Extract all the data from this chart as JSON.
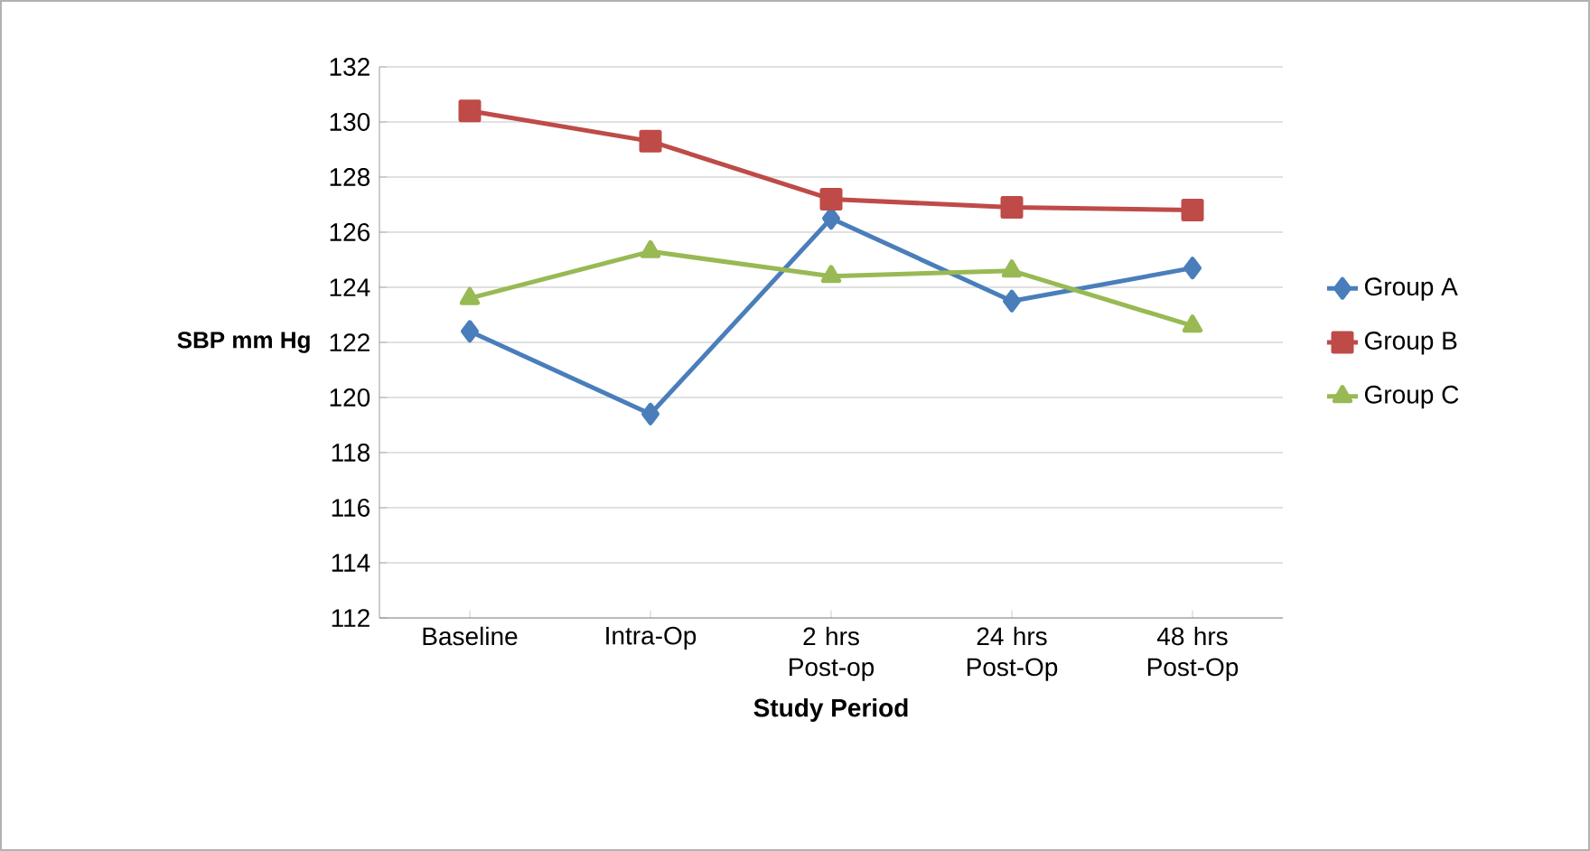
{
  "chart_data": {
    "type": "line",
    "xlabel": "Study Period",
    "ylabel": "SBP mm Hg",
    "categories": [
      "Baseline",
      "Intra-Op",
      "2 hrs Post-op",
      "24 hrs Post-Op",
      "48 hrs Post-Op"
    ],
    "ylim": [
      112,
      132
    ],
    "yticks": [
      112,
      114,
      116,
      118,
      120,
      122,
      124,
      126,
      128,
      130,
      132
    ],
    "grid": "y",
    "legend": "right",
    "series": [
      {
        "name": "Group A",
        "color": "#4a7ebb",
        "marker": "diamond",
        "values": [
          122.4,
          119.4,
          126.5,
          123.5,
          124.7
        ]
      },
      {
        "name": "Group B",
        "color": "#be4b48",
        "marker": "square",
        "values": [
          130.4,
          129.3,
          127.2,
          126.9,
          126.8
        ]
      },
      {
        "name": "Group C",
        "color": "#98b954",
        "marker": "triangle",
        "values": [
          123.6,
          125.3,
          124.4,
          124.6,
          122.6
        ]
      }
    ]
  }
}
